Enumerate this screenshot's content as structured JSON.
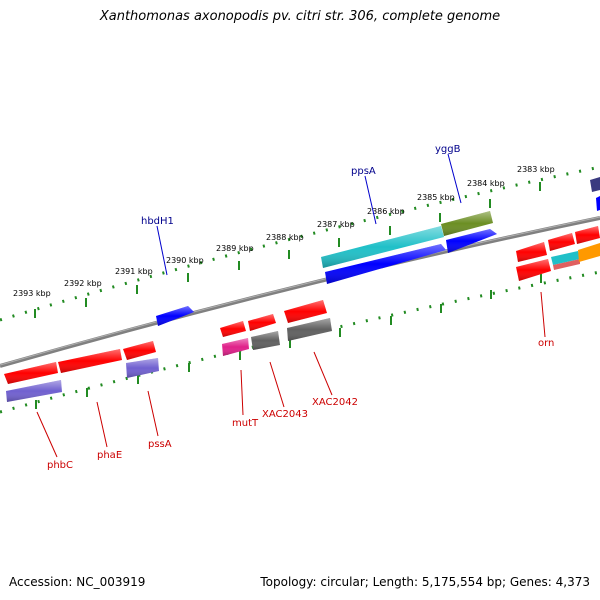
{
  "title": "Xanthomonas axonopodis pv. citri str. 306, complete genome",
  "accession": "Accession: NC_003919",
  "topology": "Topology: circular; Length: 5,175,554 bp; Genes: 4,373",
  "colors": {
    "backbone": "#808080",
    "tick": "#228b22",
    "label_red": "#cc0000",
    "label_blue": "#00008b",
    "gene_red": "#ff0000",
    "gene_blue": "#0000ff",
    "gene_cyan": "#20c0c8",
    "gene_olive": "#6b8e23",
    "gene_purple": "#7060d0",
    "gene_grey": "#606060",
    "gene_magenta": "#e0208a",
    "gene_orange": "#ff9900",
    "gene_navy": "#3a3a80"
  },
  "tick_labels": [
    "2393 kbp",
    "2392 kbp",
    "2391 kbp",
    "2390 kbp",
    "2389 kbp",
    "2388 kbp",
    "2387 kbp",
    "2386 kbp",
    "2385 kbp",
    "2384 kbp",
    "2383 kbp"
  ],
  "gene_labels_top": [
    "hbdH1",
    "ppsA",
    "yggB"
  ],
  "gene_labels_bottom": [
    "phbC",
    "phaE",
    "pssA",
    "mutT",
    "XAC2043",
    "XAC2042",
    "orn"
  ]
}
